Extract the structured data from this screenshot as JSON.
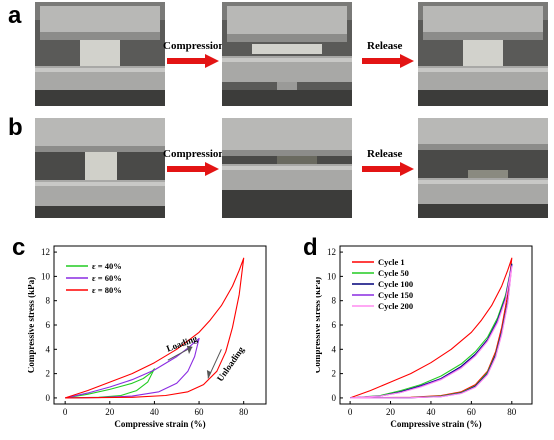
{
  "panels": {
    "a": {
      "letter": "a",
      "labels": [
        "Compression",
        "Release"
      ]
    },
    "b": {
      "letter": "b",
      "labels": [
        "Compression",
        "Release"
      ]
    },
    "c": {
      "letter": "c"
    },
    "d": {
      "letter": "d"
    }
  },
  "colors": {
    "red": "#ff0000",
    "green": "#22cc22",
    "purple": "#8a2be2",
    "navy": "#00007a",
    "pink": "#ff8cf0",
    "arrow": "#e31414"
  },
  "chart_data": [
    {
      "type": "line",
      "panel": "c",
      "xlabel": "Compressive strain (%)",
      "ylabel": "Compressive stress (kPa)",
      "xlim": [
        -5,
        90
      ],
      "ylim": [
        -0.5,
        12.5
      ],
      "xticks": [
        0,
        20,
        40,
        60,
        80
      ],
      "yticks": [
        0,
        2,
        4,
        6,
        8,
        10,
        12
      ],
      "legend_position": "top-left",
      "annotations": [
        "Loading",
        "Unloading"
      ],
      "series": [
        {
          "name": "ε = 40%",
          "color": "#22cc22",
          "loading": [
            [
              0,
              0
            ],
            [
              10,
              0.3
            ],
            [
              20,
              0.7
            ],
            [
              30,
              1.2
            ],
            [
              35,
              1.6
            ],
            [
              38,
              2.0
            ],
            [
              40,
              2.4
            ]
          ],
          "unloading": [
            [
              40,
              2.4
            ],
            [
              37,
              1.3
            ],
            [
              32,
              0.6
            ],
            [
              25,
              0.2
            ],
            [
              15,
              0.05
            ],
            [
              0,
              0
            ]
          ]
        },
        {
          "name": "ε = 60%",
          "color": "#8a2be2",
          "loading": [
            [
              0,
              0
            ],
            [
              10,
              0.4
            ],
            [
              20,
              0.9
            ],
            [
              30,
              1.5
            ],
            [
              40,
              2.3
            ],
            [
              50,
              3.4
            ],
            [
              55,
              4.1
            ],
            [
              60,
              4.9
            ]
          ],
          "unloading": [
            [
              60,
              4.9
            ],
            [
              58,
              3.4
            ],
            [
              55,
              2.2
            ],
            [
              50,
              1.2
            ],
            [
              42,
              0.5
            ],
            [
              30,
              0.15
            ],
            [
              15,
              0.03
            ],
            [
              0,
              0
            ]
          ]
        },
        {
          "name": "ε = 80%",
          "color": "#ff0000",
          "loading": [
            [
              0,
              0
            ],
            [
              10,
              0.6
            ],
            [
              20,
              1.3
            ],
            [
              30,
              2.0
            ],
            [
              40,
              2.9
            ],
            [
              50,
              4.0
            ],
            [
              60,
              5.4
            ],
            [
              65,
              6.4
            ],
            [
              70,
              7.6
            ],
            [
              75,
              9.2
            ],
            [
              78,
              10.5
            ],
            [
              80,
              11.5
            ]
          ],
          "unloading": [
            [
              80,
              11.5
            ],
            [
              78,
              8.5
            ],
            [
              75,
              5.8
            ],
            [
              72,
              3.8
            ],
            [
              68,
              2.2
            ],
            [
              62,
              1.1
            ],
            [
              55,
              0.5
            ],
            [
              45,
              0.2
            ],
            [
              30,
              0.05
            ],
            [
              0,
              0
            ]
          ]
        }
      ]
    },
    {
      "type": "line",
      "panel": "d",
      "xlabel": "Compressive strain (%)",
      "ylabel": "Compressive stress (kPa)",
      "xlim": [
        -5,
        90
      ],
      "ylim": [
        -0.5,
        12.5
      ],
      "xticks": [
        0,
        20,
        40,
        60,
        80
      ],
      "yticks": [
        0,
        2,
        4,
        6,
        8,
        10,
        12
      ],
      "legend_position": "top-left",
      "series": [
        {
          "name": "Cycle 1",
          "color": "#ff0000",
          "loading": [
            [
              0,
              0
            ],
            [
              10,
              0.6
            ],
            [
              20,
              1.3
            ],
            [
              30,
              2.0
            ],
            [
              40,
              2.9
            ],
            [
              50,
              4.0
            ],
            [
              60,
              5.4
            ],
            [
              65,
              6.4
            ],
            [
              70,
              7.6
            ],
            [
              75,
              9.2
            ],
            [
              78,
              10.5
            ],
            [
              80,
              11.5
            ]
          ],
          "unloading": [
            [
              80,
              11.5
            ],
            [
              78,
              8.5
            ],
            [
              75,
              5.8
            ],
            [
              72,
              3.8
            ],
            [
              68,
              2.2
            ],
            [
              62,
              1.1
            ],
            [
              55,
              0.5
            ],
            [
              45,
              0.2
            ],
            [
              30,
              0.05
            ],
            [
              0,
              0
            ]
          ]
        },
        {
          "name": "Cycle 50",
          "color": "#22cc22",
          "loading": [
            [
              0,
              0
            ],
            [
              15,
              0.2
            ],
            [
              25,
              0.6
            ],
            [
              35,
              1.1
            ],
            [
              45,
              1.8
            ],
            [
              55,
              2.8
            ],
            [
              62,
              3.8
            ],
            [
              68,
              5.0
            ],
            [
              73,
              6.6
            ],
            [
              77,
              8.5
            ],
            [
              80,
              11.0
            ]
          ],
          "unloading": [
            [
              80,
              11.0
            ],
            [
              78,
              8.0
            ],
            [
              75,
              5.5
            ],
            [
              72,
              3.6
            ],
            [
              68,
              2.1
            ],
            [
              62,
              1.0
            ],
            [
              55,
              0.45
            ],
            [
              45,
              0.15
            ],
            [
              30,
              0.03
            ],
            [
              0,
              0
            ]
          ]
        },
        {
          "name": "Cycle 100",
          "color": "#00007a",
          "loading": [
            [
              0,
              0
            ],
            [
              15,
              0.15
            ],
            [
              25,
              0.5
            ],
            [
              35,
              1.0
            ],
            [
              45,
              1.6
            ],
            [
              55,
              2.6
            ],
            [
              62,
              3.6
            ],
            [
              68,
              4.8
            ],
            [
              73,
              6.4
            ],
            [
              77,
              8.3
            ],
            [
              80,
              11.0
            ]
          ],
          "unloading": [
            [
              80,
              11.0
            ],
            [
              78,
              7.9
            ],
            [
              75,
              5.4
            ],
            [
              72,
              3.5
            ],
            [
              68,
              2.0
            ],
            [
              62,
              0.95
            ],
            [
              55,
              0.4
            ],
            [
              45,
              0.12
            ],
            [
              30,
              0.02
            ],
            [
              0,
              0
            ]
          ]
        },
        {
          "name": "Cycle 150",
          "color": "#8a2be2",
          "loading": [
            [
              0,
              0
            ],
            [
              15,
              0.15
            ],
            [
              25,
              0.45
            ],
            [
              35,
              0.95
            ],
            [
              45,
              1.55
            ],
            [
              55,
              2.5
            ],
            [
              62,
              3.5
            ],
            [
              68,
              4.7
            ],
            [
              73,
              6.3
            ],
            [
              77,
              8.2
            ],
            [
              80,
              10.9
            ]
          ],
          "unloading": [
            [
              80,
              10.9
            ],
            [
              78,
              7.8
            ],
            [
              75,
              5.3
            ],
            [
              72,
              3.4
            ],
            [
              68,
              1.95
            ],
            [
              62,
              0.9
            ],
            [
              55,
              0.38
            ],
            [
              45,
              0.1
            ],
            [
              30,
              0.02
            ],
            [
              0,
              0
            ]
          ]
        },
        {
          "name": "Cycle 200",
          "color": "#ff8cf0",
          "loading": [
            [
              0,
              0
            ],
            [
              15,
              0.15
            ],
            [
              25,
              0.45
            ],
            [
              35,
              0.9
            ],
            [
              45,
              1.5
            ],
            [
              55,
              2.45
            ],
            [
              62,
              3.45
            ],
            [
              68,
              4.65
            ],
            [
              73,
              6.2
            ],
            [
              77,
              8.1
            ],
            [
              80,
              10.8
            ]
          ],
          "unloading": [
            [
              80,
              10.8
            ],
            [
              78,
              7.7
            ],
            [
              75,
              5.2
            ],
            [
              72,
              3.35
            ],
            [
              68,
              1.9
            ],
            [
              62,
              0.88
            ],
            [
              55,
              0.36
            ],
            [
              45,
              0.1
            ],
            [
              30,
              0.02
            ],
            [
              0,
              0
            ]
          ]
        }
      ]
    }
  ]
}
